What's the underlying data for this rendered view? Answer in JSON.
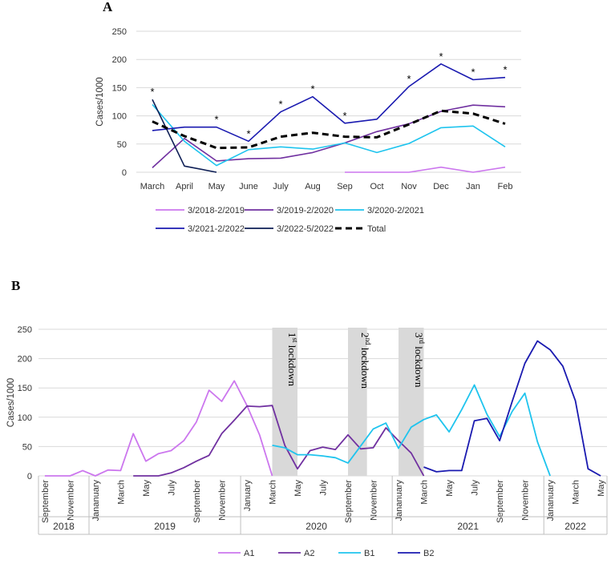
{
  "chart_data": [
    {
      "panel": "A",
      "type": "line",
      "ylabel": "Cases/1000",
      "ylim": [
        0,
        250
      ],
      "yticks": [
        0,
        50,
        100,
        150,
        200,
        250
      ],
      "categories": [
        "March",
        "April",
        "May",
        "June",
        "July",
        "Aug",
        "Sep",
        "Oct",
        "Nov",
        "Dec",
        "Jan",
        "Feb"
      ],
      "series": [
        {
          "name": "3/2018-2/2019",
          "color": "#CC77EE",
          "dash": false,
          "values": [
            null,
            null,
            null,
            null,
            null,
            null,
            0,
            0,
            0,
            9,
            0,
            9
          ]
        },
        {
          "name": "3/2019-2/2020",
          "color": "#7030A0",
          "dash": false,
          "values": [
            8,
            60,
            20,
            24,
            25,
            35,
            52,
            72,
            86,
            108,
            119,
            116
          ]
        },
        {
          "name": "3/2020-2/2021",
          "color": "#1FC4EE",
          "dash": false,
          "values": [
            120,
            55,
            12,
            40,
            45,
            41,
            52,
            35,
            51,
            79,
            82,
            45
          ]
        },
        {
          "name": "3/2021-2/2022",
          "color": "#1A1AB0",
          "dash": false,
          "values": [
            74,
            80,
            80,
            55,
            107,
            134,
            87,
            94,
            152,
            192,
            164,
            168
          ]
        },
        {
          "name": "3/2022-5/2022",
          "color": "#0D1E55",
          "dash": false,
          "values": [
            129,
            11,
            0,
            null,
            null,
            null,
            null,
            null,
            null,
            null,
            null,
            null
          ]
        },
        {
          "name": "Total",
          "color": "#000000",
          "dash": true,
          "values": [
            90,
            64,
            43,
            44,
            63,
            70,
            63,
            62,
            85,
            109,
            104,
            86
          ]
        }
      ],
      "stars": [
        "March",
        "May",
        "June",
        "July",
        "Aug",
        "Sep",
        "Nov",
        "Dec",
        "Jan",
        "Feb"
      ],
      "star_symbol": "*"
    },
    {
      "panel": "B",
      "type": "line",
      "ylabel": "Cases/1000",
      "ylim": [
        0,
        250
      ],
      "yticks": [
        0,
        50,
        100,
        150,
        200,
        250
      ],
      "month_count": 45,
      "x_tick_labels": [
        {
          "month": 0,
          "label": "September"
        },
        {
          "month": 2,
          "label": "November"
        },
        {
          "month": 4,
          "label": "Jananuary"
        },
        {
          "month": 6,
          "label": "March"
        },
        {
          "month": 8,
          "label": "May"
        },
        {
          "month": 10,
          "label": "July"
        },
        {
          "month": 12,
          "label": "September"
        },
        {
          "month": 14,
          "label": "November"
        },
        {
          "month": 16,
          "label": "January"
        },
        {
          "month": 18,
          "label": "March"
        },
        {
          "month": 20,
          "label": "May"
        },
        {
          "month": 22,
          "label": "July"
        },
        {
          "month": 24,
          "label": "September"
        },
        {
          "month": 26,
          "label": "November"
        },
        {
          "month": 28,
          "label": "Jananuary"
        },
        {
          "month": 30,
          "label": "March"
        },
        {
          "month": 32,
          "label": "May"
        },
        {
          "month": 34,
          "label": "July"
        },
        {
          "month": 36,
          "label": "September"
        },
        {
          "month": 38,
          "label": "November"
        },
        {
          "month": 40,
          "label": "Jananuary"
        },
        {
          "month": 42,
          "label": "March"
        },
        {
          "month": 44,
          "label": "May"
        }
      ],
      "years": [
        {
          "label": "2018",
          "start": 0,
          "end": 4
        },
        {
          "label": "2019",
          "start": 4,
          "end": 16
        },
        {
          "label": "2020",
          "start": 16,
          "end": 28
        },
        {
          "label": "2021",
          "start": 28,
          "end": 40
        },
        {
          "label": "2022",
          "start": 40,
          "end": 45
        }
      ],
      "lockdowns": [
        {
          "start": 18,
          "end": 20,
          "label": "lockdown",
          "ordinal": "1",
          "suffix": "st"
        },
        {
          "start": 24,
          "end": 25.5,
          "label": "lockdown",
          "ordinal": "2",
          "suffix": "nd"
        },
        {
          "start": 28,
          "end": 30,
          "label": "lockdown",
          "ordinal": "3",
          "suffix": "rd"
        }
      ],
      "series": [
        {
          "name": "A1",
          "color": "#CC77EE",
          "start": 0,
          "values": [
            0,
            0,
            0,
            9,
            0,
            10,
            9,
            72,
            25,
            38,
            43,
            60,
            92,
            146,
            127,
            162,
            120,
            70,
            0
          ]
        },
        {
          "name": "A2",
          "color": "#7030A0",
          "start": 7,
          "values": [
            0,
            0,
            0,
            5,
            14,
            25,
            35,
            72,
            95,
            119,
            118,
            120,
            52,
            12,
            43,
            49,
            45,
            70,
            46,
            48,
            82,
            60,
            39,
            0
          ]
        },
        {
          "name": "B1",
          "color": "#1FC4EE",
          "start": 18,
          "values": [
            52,
            48,
            36,
            36,
            34,
            31,
            22,
            51,
            80,
            90,
            47,
            83,
            96,
            104,
            75,
            113,
            155,
            105,
            67,
            110,
            141,
            58,
            0
          ]
        },
        {
          "name": "B2",
          "color": "#1A1AB0",
          "start": 30,
          "values": [
            15,
            7,
            9,
            9,
            94,
            98,
            60,
            127,
            192,
            230,
            215,
            187,
            128,
            12,
            0
          ]
        }
      ]
    }
  ],
  "labels": {
    "panel_a": "A",
    "panel_b": "B",
    "ylabel_a": "Cases/1000",
    "ylabel_b": "Cases/1000"
  }
}
